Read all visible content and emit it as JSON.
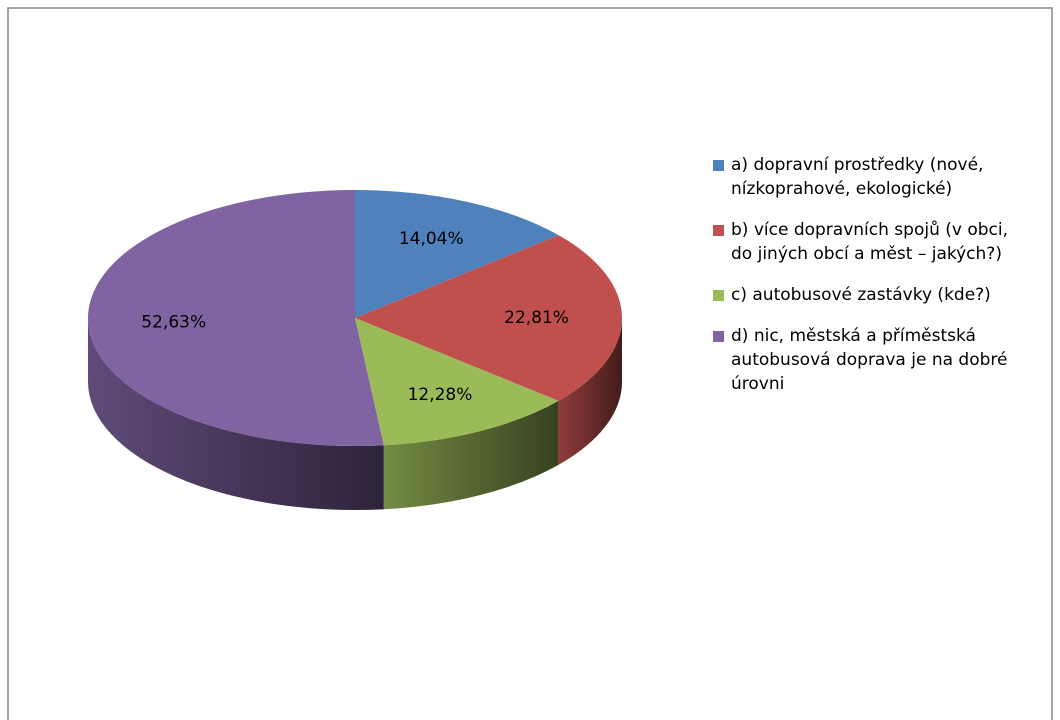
{
  "chart_data": {
    "type": "pie3d",
    "categories": [
      "a) dopravní prostředky (nové, nízkoprahové, ekologické)",
      "b) více dopravních spojů (v obci, do jiných obcí a měst  – jakých?)",
      "c) autobusové zastávky (kde?)",
      "d) nic, městská a příměstská autobusová doprava je na dobré úrovni"
    ],
    "values": [
      14.04,
      22.81,
      12.28,
      52.63
    ],
    "value_labels": [
      "14,04%",
      "22,81%",
      "12,28%",
      "52,63%"
    ],
    "colors": [
      "#4f81bd",
      "#c0504d",
      "#9bbb59",
      "#8064a2"
    ],
    "legend": "right"
  }
}
